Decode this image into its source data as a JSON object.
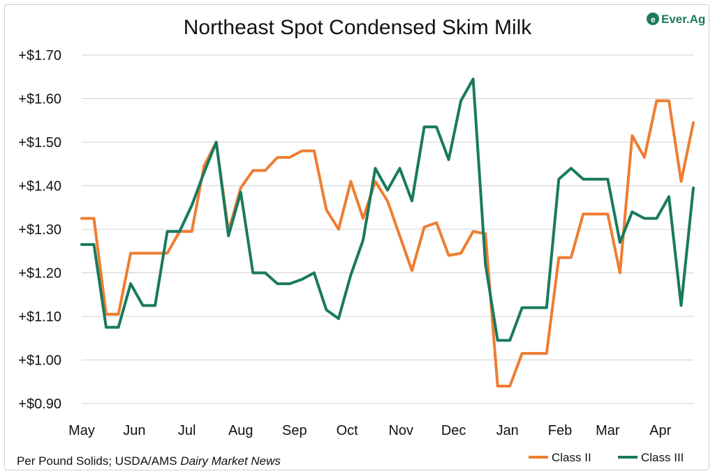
{
  "chart_data": {
    "type": "line",
    "title": "Northeast Spot Condensed Skim Milk",
    "xlabel": "",
    "ylabel": "",
    "ylim": [
      0.9,
      1.7
    ],
    "yticks": [
      {
        "value": 1.7,
        "label": "+$1.70"
      },
      {
        "value": 1.6,
        "label": "+$1.60"
      },
      {
        "value": 1.5,
        "label": "+$1.50"
      },
      {
        "value": 1.4,
        "label": "+$1.40"
      },
      {
        "value": 1.3,
        "label": "+$1.30"
      },
      {
        "value": 1.2,
        "label": "+$1.20"
      },
      {
        "value": 1.1,
        "label": "+$1.10"
      },
      {
        "value": 1.0,
        "label": "+$1.00"
      },
      {
        "value": 0.9,
        "label": "+$0.90"
      }
    ],
    "xticks": [
      {
        "index": 0,
        "label": "May"
      },
      {
        "index": 4.3,
        "label": "Jun"
      },
      {
        "index": 8.6,
        "label": "Jul"
      },
      {
        "index": 13,
        "label": "Aug"
      },
      {
        "index": 17.4,
        "label": "Sep"
      },
      {
        "index": 21.7,
        "label": "Oct"
      },
      {
        "index": 26.1,
        "label": "Nov"
      },
      {
        "index": 30.4,
        "label": "Dec"
      },
      {
        "index": 34.8,
        "label": "Jan"
      },
      {
        "index": 39.1,
        "label": "Feb"
      },
      {
        "index": 43.0,
        "label": "Mar"
      },
      {
        "index": 47.3,
        "label": "Apr"
      }
    ],
    "x_count": 51,
    "series": [
      {
        "name": "Class II",
        "color": "#ee7d31",
        "values": [
          1.325,
          1.325,
          1.105,
          1.105,
          1.245,
          1.245,
          1.245,
          1.245,
          1.295,
          1.295,
          1.445,
          1.5,
          1.295,
          1.395,
          1.435,
          1.435,
          1.465,
          1.465,
          1.48,
          1.48,
          1.345,
          1.3,
          1.41,
          1.325,
          1.41,
          1.365,
          1.285,
          1.205,
          1.305,
          1.315,
          1.24,
          1.245,
          1.295,
          1.29,
          0.94,
          0.94,
          1.015,
          1.015,
          1.015,
          1.235,
          1.235,
          1.335,
          1.335,
          1.335,
          1.2,
          1.515,
          1.465,
          1.595,
          1.595,
          1.41,
          1.545
        ]
      },
      {
        "name": "Class III",
        "color": "#187a5e",
        "values": [
          1.265,
          1.265,
          1.075,
          1.075,
          1.175,
          1.125,
          1.125,
          1.295,
          1.295,
          1.355,
          1.43,
          1.5,
          1.285,
          1.385,
          1.2,
          1.2,
          1.175,
          1.175,
          1.185,
          1.2,
          1.115,
          1.095,
          1.195,
          1.275,
          1.44,
          1.39,
          1.44,
          1.365,
          1.535,
          1.535,
          1.46,
          1.595,
          1.645,
          1.22,
          1.045,
          1.045,
          1.12,
          1.12,
          1.12,
          1.415,
          1.44,
          1.415,
          1.415,
          1.415,
          1.27,
          1.34,
          1.325,
          1.325,
          1.375,
          1.125,
          1.395
        ]
      }
    ],
    "footnote_prefix": "Per Pound Solids; USDA/AMS ",
    "footnote_italic": "Dairy Market News",
    "legend_position": "bottom-right",
    "logo_text": "Ever.Ag",
    "gridline_color": "#d0d0d0"
  }
}
